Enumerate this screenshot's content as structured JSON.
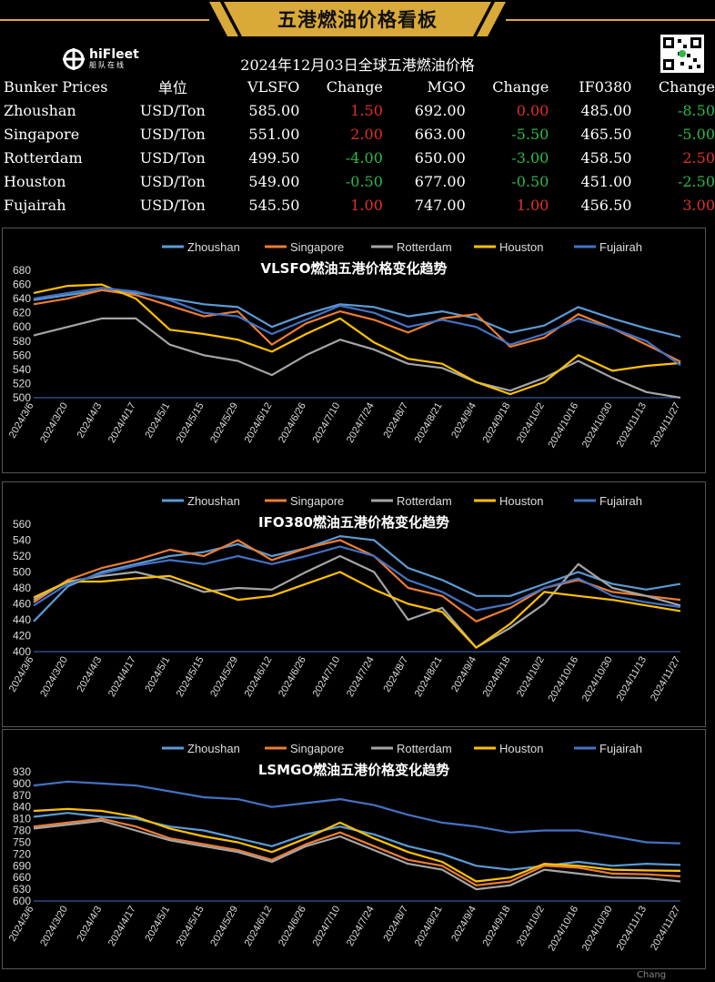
{
  "banner_title": "五港燃油价格看板",
  "logo": {
    "name": "hiFleet",
    "sub": "船队在线"
  },
  "table_title": "2024年12月03日全球五港燃油价格",
  "table": {
    "headers": [
      "Bunker Prices",
      "单位",
      "VLSFO",
      "Change",
      "MGO",
      "Change",
      "IF0380",
      "Change"
    ],
    "rows": [
      {
        "port": "Zhoushan",
        "unit": "USD/Ton",
        "vlsfo": "585.00",
        "vlsfo_chg": "1.50",
        "mgo": "692.00",
        "mgo_chg": "0.00",
        "ifo": "485.00",
        "ifo_chg": "-8.50"
      },
      {
        "port": "Singapore",
        "unit": "USD/Ton",
        "vlsfo": "551.00",
        "vlsfo_chg": "2.00",
        "mgo": "663.00",
        "mgo_chg": "-5.50",
        "ifo": "465.50",
        "ifo_chg": "-5.00"
      },
      {
        "port": "Rotterdam",
        "unit": "USD/Ton",
        "vlsfo": "499.50",
        "vlsfo_chg": "-4.00",
        "mgo": "650.00",
        "mgo_chg": "-3.00",
        "ifo": "458.50",
        "ifo_chg": "2.50"
      },
      {
        "port": "Houston",
        "unit": "USD/Ton",
        "vlsfo": "549.00",
        "vlsfo_chg": "-0.50",
        "mgo": "677.00",
        "mgo_chg": "-0.50",
        "ifo": "451.00",
        "ifo_chg": "-2.50"
      },
      {
        "port": "Fujairah",
        "unit": "USD/Ton",
        "vlsfo": "545.50",
        "vlsfo_chg": "1.00",
        "mgo": "747.00",
        "mgo_chg": "1.00",
        "ifo": "456.50",
        "ifo_chg": "3.00"
      }
    ]
  },
  "colors": {
    "up": "#e0302a",
    "down": "#2db84a",
    "gold": "#d9a93a"
  },
  "footer_text": "Chang",
  "chart_data": [
    {
      "type": "line",
      "title": "VLSFO燃油五港价格变化趋势",
      "x": [
        "2024/3/6",
        "2024/3/20",
        "2024/4/3",
        "2024/4/17",
        "2024/5/1",
        "2024/5/15",
        "2024/5/29",
        "2024/6/12",
        "2024/6/26",
        "2024/7/10",
        "2024/7/24",
        "2024/8/7",
        "2024/8/21",
        "2024/9/4",
        "2024/9/18",
        "2024/10/2",
        "2024/10/16",
        "2024/10/30",
        "2024/11/13",
        "2024/11/27"
      ],
      "ylim": [
        500,
        680
      ],
      "yticks": [
        500,
        520,
        540,
        560,
        580,
        600,
        620,
        640,
        660,
        680
      ],
      "legend": "top",
      "series": [
        {
          "name": "Zhoushan",
          "color": "#5b9bd5",
          "values": [
            638,
            645,
            652,
            648,
            640,
            632,
            628,
            600,
            618,
            632,
            628,
            615,
            622,
            612,
            592,
            602,
            628,
            612,
            598,
            586
          ]
        },
        {
          "name": "Singapore",
          "color": "#ed7d31",
          "values": [
            632,
            640,
            652,
            645,
            630,
            615,
            622,
            575,
            605,
            622,
            610,
            592,
            612,
            618,
            572,
            585,
            618,
            598,
            575,
            551
          ]
        },
        {
          "name": "Rotterdam",
          "color": "#a5a5a5",
          "values": [
            588,
            600,
            612,
            612,
            575,
            560,
            552,
            532,
            560,
            582,
            568,
            548,
            542,
            522,
            510,
            528,
            552,
            528,
            508,
            500
          ]
        },
        {
          "name": "Houston",
          "color": "#ffc000",
          "values": [
            648,
            658,
            660,
            640,
            596,
            590,
            582,
            565,
            590,
            612,
            578,
            555,
            548,
            522,
            505,
            522,
            560,
            538,
            545,
            549
          ]
        },
        {
          "name": "Fujairah",
          "color": "#4472c4",
          "values": [
            640,
            648,
            655,
            650,
            638,
            620,
            615,
            590,
            610,
            630,
            620,
            600,
            610,
            600,
            575,
            590,
            612,
            598,
            580,
            546
          ]
        }
      ]
    },
    {
      "type": "line",
      "title": "IFO380燃油五港价格变化趋势",
      "x": [
        "2024/3/6",
        "2024/3/20",
        "2024/4/3",
        "2024/4/17",
        "2024/5/1",
        "2024/5/15",
        "2024/5/29",
        "2024/6/12",
        "2024/6/26",
        "2024/7/10",
        "2024/7/24",
        "2024/8/7",
        "2024/8/21",
        "2024/9/4",
        "2024/9/18",
        "2024/10/2",
        "2024/10/16",
        "2024/10/30",
        "2024/11/13",
        "2024/11/27"
      ],
      "ylim": [
        400,
        560
      ],
      "yticks": [
        400,
        420,
        440,
        460,
        480,
        500,
        520,
        540,
        560
      ],
      "legend": "top",
      "series": [
        {
          "name": "Zhoushan",
          "color": "#5b9bd5",
          "values": [
            438,
            482,
            500,
            510,
            520,
            525,
            535,
            520,
            530,
            545,
            540,
            505,
            490,
            470,
            470,
            485,
            500,
            485,
            478,
            485
          ]
        },
        {
          "name": "Singapore",
          "color": "#ed7d31",
          "values": [
            462,
            490,
            505,
            515,
            528,
            520,
            540,
            515,
            530,
            540,
            520,
            480,
            470,
            438,
            455,
            480,
            490,
            475,
            470,
            465
          ]
        },
        {
          "name": "Rotterdam",
          "color": "#a5a5a5",
          "values": [
            465,
            488,
            495,
            500,
            490,
            475,
            480,
            478,
            500,
            520,
            500,
            440,
            455,
            405,
            430,
            460,
            510,
            480,
            470,
            458
          ]
        },
        {
          "name": "Houston",
          "color": "#ffc000",
          "values": [
            468,
            488,
            488,
            492,
            495,
            480,
            465,
            470,
            485,
            500,
            478,
            460,
            450,
            405,
            435,
            475,
            470,
            465,
            458,
            451
          ]
        },
        {
          "name": "Fujairah",
          "color": "#4472c4",
          "values": [
            458,
            485,
            498,
            508,
            515,
            510,
            520,
            510,
            520,
            532,
            520,
            490,
            475,
            452,
            460,
            480,
            492,
            470,
            462,
            456
          ]
        }
      ]
    },
    {
      "type": "line",
      "title": "LSMGO燃油五港价格变化趋势",
      "x": [
        "2024/3/6",
        "2024/3/20",
        "2024/4/3",
        "2024/4/17",
        "2024/5/1",
        "2024/5/15",
        "2024/5/29",
        "2024/6/12",
        "2024/6/26",
        "2024/7/10",
        "2024/7/24",
        "2024/8/7",
        "2024/8/21",
        "2024/9/4",
        "2024/9/18",
        "2024/10/2",
        "2024/10/16",
        "2024/10/30",
        "2024/11/13",
        "2024/11/27"
      ],
      "ylim": [
        600,
        930
      ],
      "yticks": [
        600,
        630,
        660,
        690,
        720,
        750,
        780,
        810,
        840,
        870,
        900,
        930
      ],
      "legend": "top",
      "series": [
        {
          "name": "Zhoushan",
          "color": "#5b9bd5",
          "values": [
            815,
            825,
            815,
            810,
            790,
            780,
            760,
            740,
            770,
            790,
            770,
            740,
            720,
            690,
            680,
            690,
            700,
            690,
            695,
            692
          ]
        },
        {
          "name": "Singapore",
          "color": "#ed7d31",
          "values": [
            790,
            800,
            810,
            790,
            760,
            745,
            730,
            705,
            745,
            775,
            740,
            705,
            690,
            640,
            650,
            690,
            685,
            670,
            668,
            663
          ]
        },
        {
          "name": "Rotterdam",
          "color": "#a5a5a5",
          "values": [
            785,
            795,
            805,
            780,
            755,
            740,
            725,
            700,
            740,
            765,
            730,
            695,
            680,
            630,
            640,
            680,
            670,
            660,
            658,
            650
          ]
        },
        {
          "name": "Houston",
          "color": "#ffc000",
          "values": [
            830,
            835,
            830,
            815,
            785,
            765,
            750,
            725,
            760,
            800,
            760,
            725,
            700,
            650,
            660,
            695,
            690,
            680,
            678,
            677
          ]
        },
        {
          "name": "Fujairah",
          "color": "#4472c4",
          "values": [
            895,
            905,
            900,
            895,
            880,
            865,
            860,
            840,
            850,
            860,
            845,
            820,
            800,
            790,
            775,
            780,
            780,
            765,
            750,
            747
          ]
        }
      ]
    }
  ]
}
